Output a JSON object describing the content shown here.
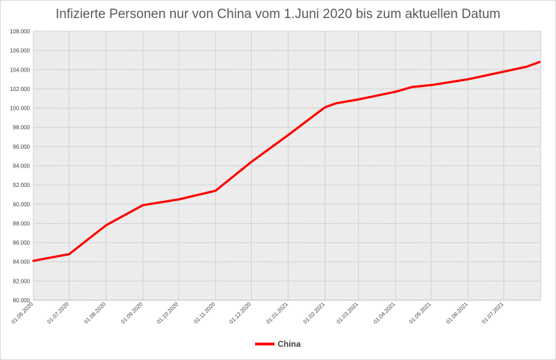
{
  "chart_data": {
    "type": "line",
    "title": "Infizierte Personen nur von China vom 1.Juni 2020 bis zum aktuellen Datum",
    "xlabel": "",
    "ylabel": "",
    "ylim": [
      80000,
      108000
    ],
    "yticks": [
      80000,
      82000,
      84000,
      86000,
      88000,
      90000,
      92000,
      94000,
      96000,
      98000,
      100000,
      102000,
      104000,
      106000,
      108000
    ],
    "ytick_labels": [
      "80.000",
      "82.000",
      "84.000",
      "86.000",
      "88.000",
      "90.000",
      "92.000",
      "94.000",
      "96.000",
      "98.000",
      "100.000",
      "102.000",
      "104.000",
      "106.000",
      "108.000"
    ],
    "xticks": [
      "2020-06-01",
      "2020-07-01",
      "2020-08-01",
      "2020-09-01",
      "2020-10-01",
      "2020-11-01",
      "2020-12-01",
      "2021-01-01",
      "2021-02-01",
      "2021-03-01",
      "2021-04-01",
      "2021-05-01",
      "2021-06-01",
      "2021-07-01"
    ],
    "xtick_labels": [
      "01.06.2020",
      "01.07.2020",
      "01.08.2020",
      "01.09.2020",
      "01.10.2020",
      "01.11.2020",
      "01.12.2020",
      "01.01.2021",
      "01.02.2021",
      "01.03.2021",
      "01.04.2021",
      "01.05.2021",
      "01.06.2021",
      "01.07.2021"
    ],
    "xlim": [
      "2020-06-01",
      "2021-07-31"
    ],
    "grid": true,
    "legend_position": "bottom",
    "series": [
      {
        "name": "China",
        "color": "#ff0000",
        "x": [
          "2020-06-01",
          "2020-07-01",
          "2020-08-01",
          "2020-09-01",
          "2020-10-01",
          "2020-11-01",
          "2020-12-01",
          "2021-01-01",
          "2021-02-01",
          "2021-02-10",
          "2021-03-01",
          "2021-04-01",
          "2021-04-15",
          "2021-05-01",
          "2021-06-01",
          "2021-07-01",
          "2021-07-20",
          "2021-07-31"
        ],
        "values": [
          84100,
          84800,
          87800,
          89900,
          90500,
          91400,
          94400,
          97200,
          100100,
          100500,
          100900,
          101700,
          102200,
          102400,
          103000,
          103800,
          104300,
          104800
        ]
      }
    ]
  }
}
